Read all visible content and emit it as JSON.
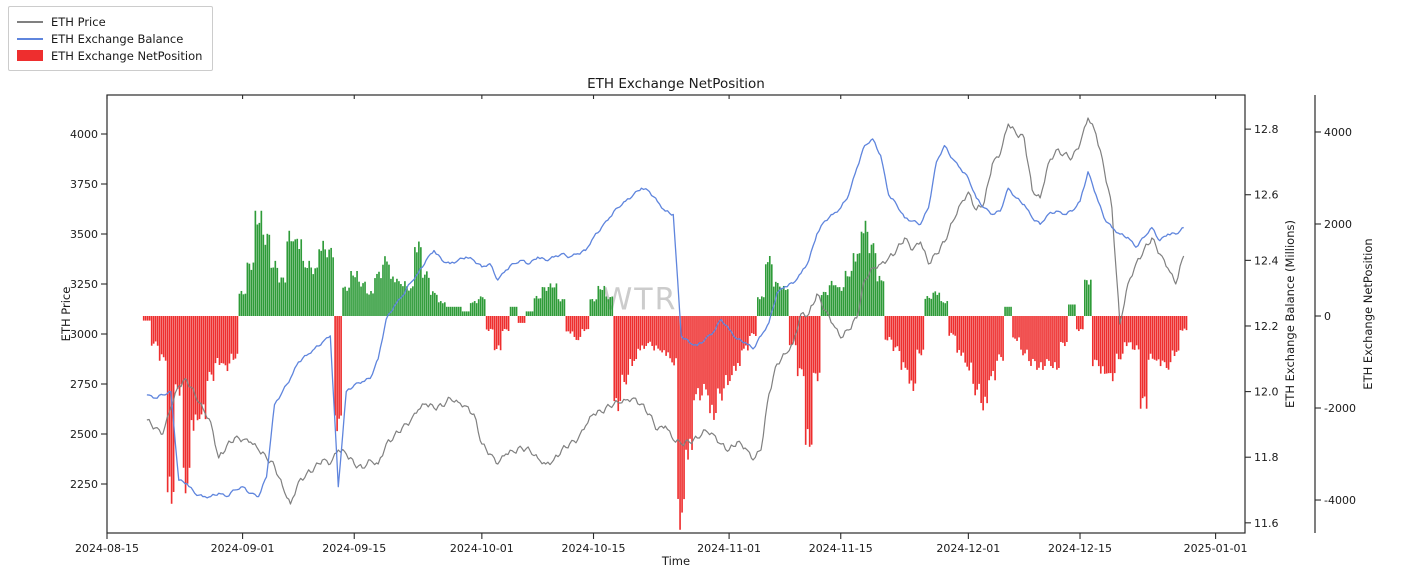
{
  "title": "ETH Exchange NetPosition",
  "watermark": "WTR",
  "axes": {
    "x_label": "Time",
    "x_ticks": [
      "2024-08-15",
      "2024-09-01",
      "2024-09-15",
      "2024-10-01",
      "2024-10-15",
      "2024-11-01",
      "2024-11-15",
      "2024-12-01",
      "2024-12-15",
      "2025-01-01"
    ],
    "left_label": "ETH Price",
    "left_ticks": [
      "2250",
      "2500",
      "2750",
      "3000",
      "3250",
      "3500",
      "3750",
      "4000"
    ],
    "right1_label": "ETH Exchange Balance (Millions)",
    "right1_ticks": [
      "11.6",
      "11.8",
      "12.0",
      "12.2",
      "12.4",
      "12.6",
      "12.8"
    ],
    "right2_label": "ETH Exchange NetPosition",
    "right2_ticks": [
      "-4000",
      "-2000",
      "0",
      "2000",
      "4000"
    ]
  },
  "legend": {
    "items": [
      {
        "label": "ETH Price",
        "swatch": "line",
        "color": "#808080"
      },
      {
        "label": "ETH Exchange Balance",
        "swatch": "line",
        "color": "#5f85dd"
      },
      {
        "label": "ETH Exchange NetPosition",
        "swatch": "patch",
        "color": "#ee2e2e"
      }
    ]
  },
  "colors": {
    "price_line": "#808080",
    "balance_line": "#5f85dd",
    "positive_bar": "#2e9b38",
    "negative_bar": "#ee2e2e",
    "watermark": "#cccccc",
    "spine": "#2a2a2a"
  },
  "chart_data": {
    "type": "line+bar, three y-axes, time series",
    "x_axis": {
      "start_date": "2024-08-15",
      "end_date": "2025-01-01",
      "grid": false,
      "legend_position": "upper-left-outside"
    },
    "axis_ranges": {
      "price_ylim": [
        2005,
        4195
      ],
      "balance_ylim": [
        11.569,
        12.904
      ],
      "netposition_ylim": [
        -4717,
        4804
      ]
    },
    "x": [
      "2024-08-20",
      "2024-08-21",
      "2024-08-22",
      "2024-08-23",
      "2024-08-24",
      "2024-08-25",
      "2024-08-26",
      "2024-08-27",
      "2024-08-28",
      "2024-08-29",
      "2024-08-30",
      "2024-08-31",
      "2024-09-01",
      "2024-09-02",
      "2024-09-03",
      "2024-09-04",
      "2024-09-05",
      "2024-09-06",
      "2024-09-07",
      "2024-09-08",
      "2024-09-09",
      "2024-09-10",
      "2024-09-11",
      "2024-09-12",
      "2024-09-13",
      "2024-09-14",
      "2024-09-15",
      "2024-09-16",
      "2024-09-17",
      "2024-09-18",
      "2024-09-19",
      "2024-09-20",
      "2024-09-21",
      "2024-09-22",
      "2024-09-23",
      "2024-09-24",
      "2024-09-25",
      "2024-09-26",
      "2024-09-27",
      "2024-09-28",
      "2024-09-29",
      "2024-09-30",
      "2024-10-01",
      "2024-10-02",
      "2024-10-03",
      "2024-10-04",
      "2024-10-05",
      "2024-10-06",
      "2024-10-07",
      "2024-10-08",
      "2024-10-09",
      "2024-10-10",
      "2024-10-11",
      "2024-10-12",
      "2024-10-13",
      "2024-10-14",
      "2024-10-15",
      "2024-10-16",
      "2024-10-17",
      "2024-10-18",
      "2024-10-19",
      "2024-10-20",
      "2024-10-21",
      "2024-10-22",
      "2024-10-23",
      "2024-10-24",
      "2024-10-25",
      "2024-10-26",
      "2024-10-27",
      "2024-10-28",
      "2024-10-29",
      "2024-10-30",
      "2024-10-31",
      "2024-11-01",
      "2024-11-02",
      "2024-11-03",
      "2024-11-04",
      "2024-11-05",
      "2024-11-06",
      "2024-11-07",
      "2024-11-08",
      "2024-11-09",
      "2024-11-10",
      "2024-11-11",
      "2024-11-12",
      "2024-11-13",
      "2024-11-14",
      "2024-11-15",
      "2024-11-16",
      "2024-11-17",
      "2024-11-18",
      "2024-11-19",
      "2024-11-20",
      "2024-11-21",
      "2024-11-22",
      "2024-11-23",
      "2024-11-24",
      "2024-11-25",
      "2024-11-26",
      "2024-11-27",
      "2024-11-28",
      "2024-11-29",
      "2024-11-30",
      "2024-12-01",
      "2024-12-02",
      "2024-12-03",
      "2024-12-04",
      "2024-12-05",
      "2024-12-06",
      "2024-12-07",
      "2024-12-08",
      "2024-12-09",
      "2024-12-10",
      "2024-12-11",
      "2024-12-12",
      "2024-12-13",
      "2024-12-14",
      "2024-12-15",
      "2024-12-16",
      "2024-12-17",
      "2024-12-18",
      "2024-12-19",
      "2024-12-20",
      "2024-12-21",
      "2024-12-22",
      "2024-12-23",
      "2024-12-24",
      "2024-12-25",
      "2024-12-26",
      "2024-12-27",
      "2024-12-28"
    ],
    "series": [
      {
        "name": "ETH Price",
        "type": "line",
        "axis": "price",
        "color": "#808080",
        "values": [
          2570,
          2530,
          2500,
          2630,
          2740,
          2770,
          2700,
          2630,
          2560,
          2380,
          2440,
          2480,
          2470,
          2460,
          2420,
          2380,
          2340,
          2240,
          2150,
          2260,
          2300,
          2330,
          2370,
          2350,
          2420,
          2400,
          2350,
          2330,
          2370,
          2350,
          2450,
          2490,
          2530,
          2560,
          2620,
          2650,
          2630,
          2640,
          2680,
          2660,
          2640,
          2600,
          2450,
          2400,
          2350,
          2400,
          2410,
          2430,
          2420,
          2380,
          2350,
          2370,
          2420,
          2450,
          2470,
          2540,
          2600,
          2610,
          2640,
          2660,
          2670,
          2680,
          2650,
          2600,
          2520,
          2540,
          2470,
          2450,
          2460,
          2480,
          2520,
          2500,
          2450,
          2420,
          2460,
          2430,
          2370,
          2420,
          2700,
          2850,
          2900,
          2950,
          3100,
          3100,
          3200,
          3120,
          3050,
          2980,
          3020,
          3080,
          3270,
          3330,
          3350,
          3380,
          3420,
          3480,
          3420,
          3460,
          3350,
          3400,
          3460,
          3560,
          3650,
          3710,
          3620,
          3660,
          3850,
          3900,
          4050,
          4000,
          3980,
          3720,
          3680,
          3850,
          3920,
          3900,
          3880,
          3950,
          4080,
          4000,
          3830,
          3630,
          3050,
          3250,
          3350,
          3420,
          3480,
          3400,
          3330,
          3250,
          3390
        ]
      },
      {
        "name": "ETH Exchange Balance",
        "type": "line",
        "axis": "balance",
        "color": "#5f85dd",
        "values": [
          11.99,
          11.98,
          11.99,
          12.0,
          11.73,
          11.72,
          11.69,
          11.68,
          11.68,
          11.69,
          11.68,
          11.7,
          11.71,
          11.69,
          11.68,
          11.74,
          11.96,
          12.0,
          12.04,
          12.09,
          12.11,
          12.13,
          12.15,
          12.17,
          11.71,
          12.0,
          12.02,
          12.03,
          12.04,
          12.1,
          12.22,
          12.26,
          12.29,
          12.33,
          12.36,
          12.4,
          12.43,
          12.4,
          12.39,
          12.4,
          12.41,
          12.4,
          12.38,
          12.39,
          12.34,
          12.37,
          12.39,
          12.4,
          12.39,
          12.41,
          12.4,
          12.41,
          12.42,
          12.41,
          12.42,
          12.43,
          12.47,
          12.5,
          12.53,
          12.56,
          12.58,
          12.6,
          12.62,
          12.61,
          12.58,
          12.55,
          12.54,
          12.17,
          12.15,
          12.14,
          12.16,
          12.18,
          12.22,
          12.19,
          12.16,
          12.15,
          12.13,
          12.17,
          12.21,
          12.3,
          12.32,
          12.33,
          12.36,
          12.4,
          12.48,
          12.52,
          12.54,
          12.56,
          12.6,
          12.68,
          12.75,
          12.77,
          12.72,
          12.6,
          12.57,
          12.53,
          12.52,
          12.51,
          12.56,
          12.7,
          12.75,
          12.71,
          12.68,
          12.65,
          12.59,
          12.56,
          12.54,
          12.55,
          12.62,
          12.59,
          12.57,
          12.53,
          12.51,
          12.54,
          12.55,
          12.54,
          12.55,
          12.58,
          12.67,
          12.6,
          12.53,
          12.5,
          12.48,
          12.47,
          12.44,
          12.47,
          12.5,
          12.46,
          12.48,
          12.48,
          12.5
        ]
      },
      {
        "name": "ETH Exchange NetPosition",
        "type": "bar",
        "axis": "netposition",
        "color_positive": "#2e9b38",
        "color_negative": "#ee2e2e",
        "values": [
          -100,
          -600,
          -900,
          -3800,
          -1600,
          -3600,
          -2300,
          -2100,
          -1300,
          -1000,
          -1100,
          -900,
          500,
          1100,
          2100,
          1700,
          1100,
          800,
          1700,
          1600,
          1100,
          1000,
          1500,
          1400,
          -2300,
          600,
          900,
          700,
          500,
          900,
          1200,
          800,
          700,
          600,
          1500,
          900,
          500,
          300,
          200,
          200,
          100,
          300,
          400,
          -300,
          -700,
          -300,
          200,
          -150,
          100,
          400,
          600,
          650,
          350,
          -350,
          -500,
          -300,
          350,
          600,
          400,
          -1900,
          -1400,
          -1000,
          -700,
          -600,
          -700,
          -800,
          -1000,
          -4300,
          -2900,
          -1700,
          -1600,
          -2100,
          -1700,
          -1400,
          -1100,
          -700,
          -400,
          400,
          1200,
          700,
          600,
          -600,
          -1200,
          -2700,
          -1300,
          500,
          700,
          600,
          900,
          1300,
          1900,
          1500,
          800,
          -500,
          -700,
          -1100,
          -1500,
          -800,
          400,
          500,
          300,
          -400,
          -800,
          -1100,
          -1600,
          -1900,
          -1300,
          -900,
          200,
          -500,
          -800,
          -1000,
          -1100,
          -1000,
          -1100,
          -600,
          250,
          -300,
          750,
          -1000,
          -1200,
          -1300,
          -900,
          -600,
          -700,
          -1850,
          -900,
          -1000,
          -1100,
          -800,
          -300
        ]
      }
    ]
  }
}
